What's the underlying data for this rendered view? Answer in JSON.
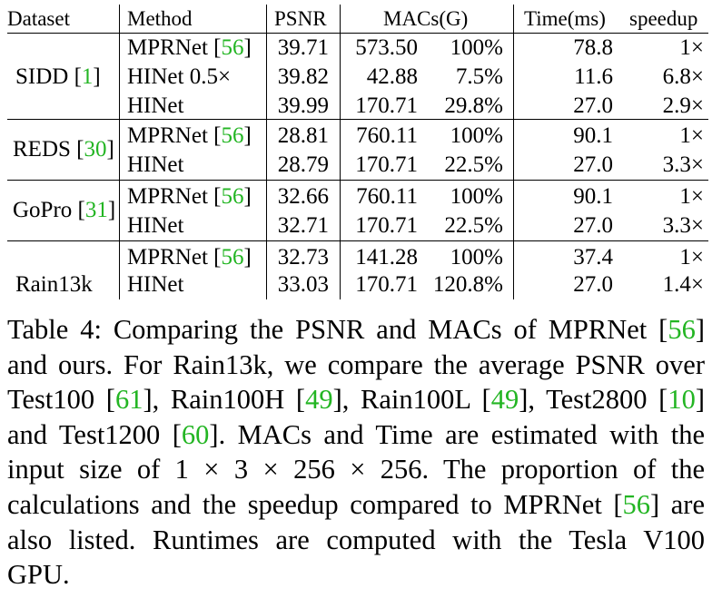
{
  "table": {
    "headers": {
      "dataset": "Dataset",
      "method": "Method",
      "psnr": "PSNR",
      "macs": "MACs(G)",
      "time": "Time(ms)",
      "speedup": "speedup"
    },
    "groups": [
      {
        "dataset": "SIDD",
        "dataset_cite": "1",
        "rows": [
          {
            "method": "MPRNet",
            "cite": "56",
            "psnr": "39.71",
            "macs": "573.50",
            "pct": "100%",
            "time": "78.8",
            "speedup": "1×"
          },
          {
            "method": "HINet 0.5×",
            "cite": "",
            "psnr": "39.82",
            "macs": "42.88",
            "pct": "7.5%",
            "time": "11.6",
            "speedup": "6.8×"
          },
          {
            "method": "HINet",
            "cite": "",
            "psnr": "39.99",
            "macs": "170.71",
            "pct": "29.8%",
            "time": "27.0",
            "speedup": "2.9×"
          }
        ]
      },
      {
        "dataset": "REDS",
        "dataset_cite": "30",
        "rows": [
          {
            "method": "MPRNet",
            "cite": "56",
            "psnr": "28.81",
            "macs": "760.11",
            "pct": "100%",
            "time": "90.1",
            "speedup": "1×"
          },
          {
            "method": "HINet",
            "cite": "",
            "psnr": "28.79",
            "macs": "170.71",
            "pct": "22.5%",
            "time": "27.0",
            "speedup": "3.3×"
          }
        ]
      },
      {
        "dataset": "GoPro",
        "dataset_cite": "31",
        "rows": [
          {
            "method": "MPRNet",
            "cite": "56",
            "psnr": "32.66",
            "macs": "760.11",
            "pct": "100%",
            "time": "90.1",
            "speedup": "1×"
          },
          {
            "method": "HINet",
            "cite": "",
            "psnr": "32.71",
            "macs": "170.71",
            "pct": "22.5%",
            "time": "27.0",
            "speedup": "3.3×"
          }
        ]
      },
      {
        "dataset": "Rain13k",
        "dataset_cite": "",
        "rows": [
          {
            "method": "MPRNet",
            "cite": "56",
            "psnr": "32.73",
            "macs": "141.28",
            "pct": "100%",
            "time": "37.4",
            "speedup": "1×"
          },
          {
            "method": "HINet",
            "cite": "",
            "psnr": "33.03",
            "macs": "170.71",
            "pct": "120.8%",
            "time": "27.0",
            "speedup": "1.4×"
          }
        ]
      }
    ]
  },
  "caption": {
    "lines": [
      [
        {
          "t": "Table 4: Comparing the PSNR and MACs of MPRNet ["
        },
        {
          "t": "56",
          "cite": true
        },
        {
          "t": "]"
        }
      ],
      [
        {
          "t": "and ours. For Rain13k, we compare the average PSNR over"
        }
      ],
      [
        {
          "t": "Test100 ["
        },
        {
          "t": "61",
          "cite": true
        },
        {
          "t": "], Rain100H ["
        },
        {
          "t": "49",
          "cite": true
        },
        {
          "t": "], Rain100L ["
        },
        {
          "t": "49",
          "cite": true
        },
        {
          "t": "], Test2800 ["
        },
        {
          "t": "10",
          "cite": true
        },
        {
          "t": "]"
        }
      ],
      [
        {
          "t": "and Test1200 ["
        },
        {
          "t": "60",
          "cite": true
        },
        {
          "t": "]. MACs and Time are estimated with the"
        }
      ],
      [
        {
          "t": "input size of 1 × 3 × 256 × 256.  The proportion of the"
        }
      ],
      [
        {
          "t": "calculations and the speedup compared to MPRNet ["
        },
        {
          "t": "56",
          "cite": true
        },
        {
          "t": "] are"
        }
      ],
      [
        {
          "t": "also listed.  Runtimes are computed with the Tesla V100"
        }
      ],
      [
        {
          "t": "GPU."
        }
      ]
    ]
  }
}
